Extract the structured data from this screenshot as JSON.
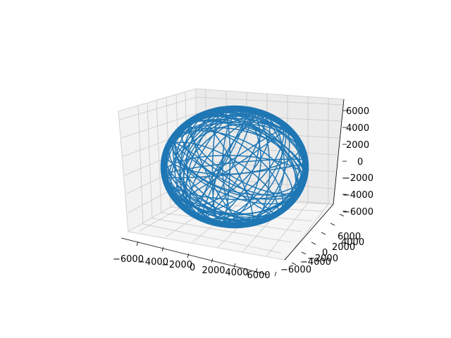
{
  "chart_data": {
    "type": "line3d",
    "title": "",
    "xlabel": "",
    "ylabel": "",
    "zlabel": "",
    "xlim": [
      -7000,
      7000
    ],
    "ylim": [
      -7000,
      7000
    ],
    "zlim": [
      -7000,
      7000
    ],
    "x_ticks": [
      "−6000",
      "−4000",
      "−2000",
      "0",
      "2000",
      "4000",
      "6000"
    ],
    "y_ticks": [
      "−6000",
      "−4000",
      "−2000",
      "0",
      "2000",
      "4000",
      "6000"
    ],
    "z_ticks": [
      "−6000",
      "−4000",
      "−2000",
      "0",
      "2000",
      "4000",
      "6000"
    ],
    "grid": true,
    "series": [
      {
        "color": "#1f77b4",
        "shape": "closed trajectory on the surface of a sphere",
        "radius": 6500,
        "center": [
          0,
          0,
          0
        ]
      }
    ]
  }
}
